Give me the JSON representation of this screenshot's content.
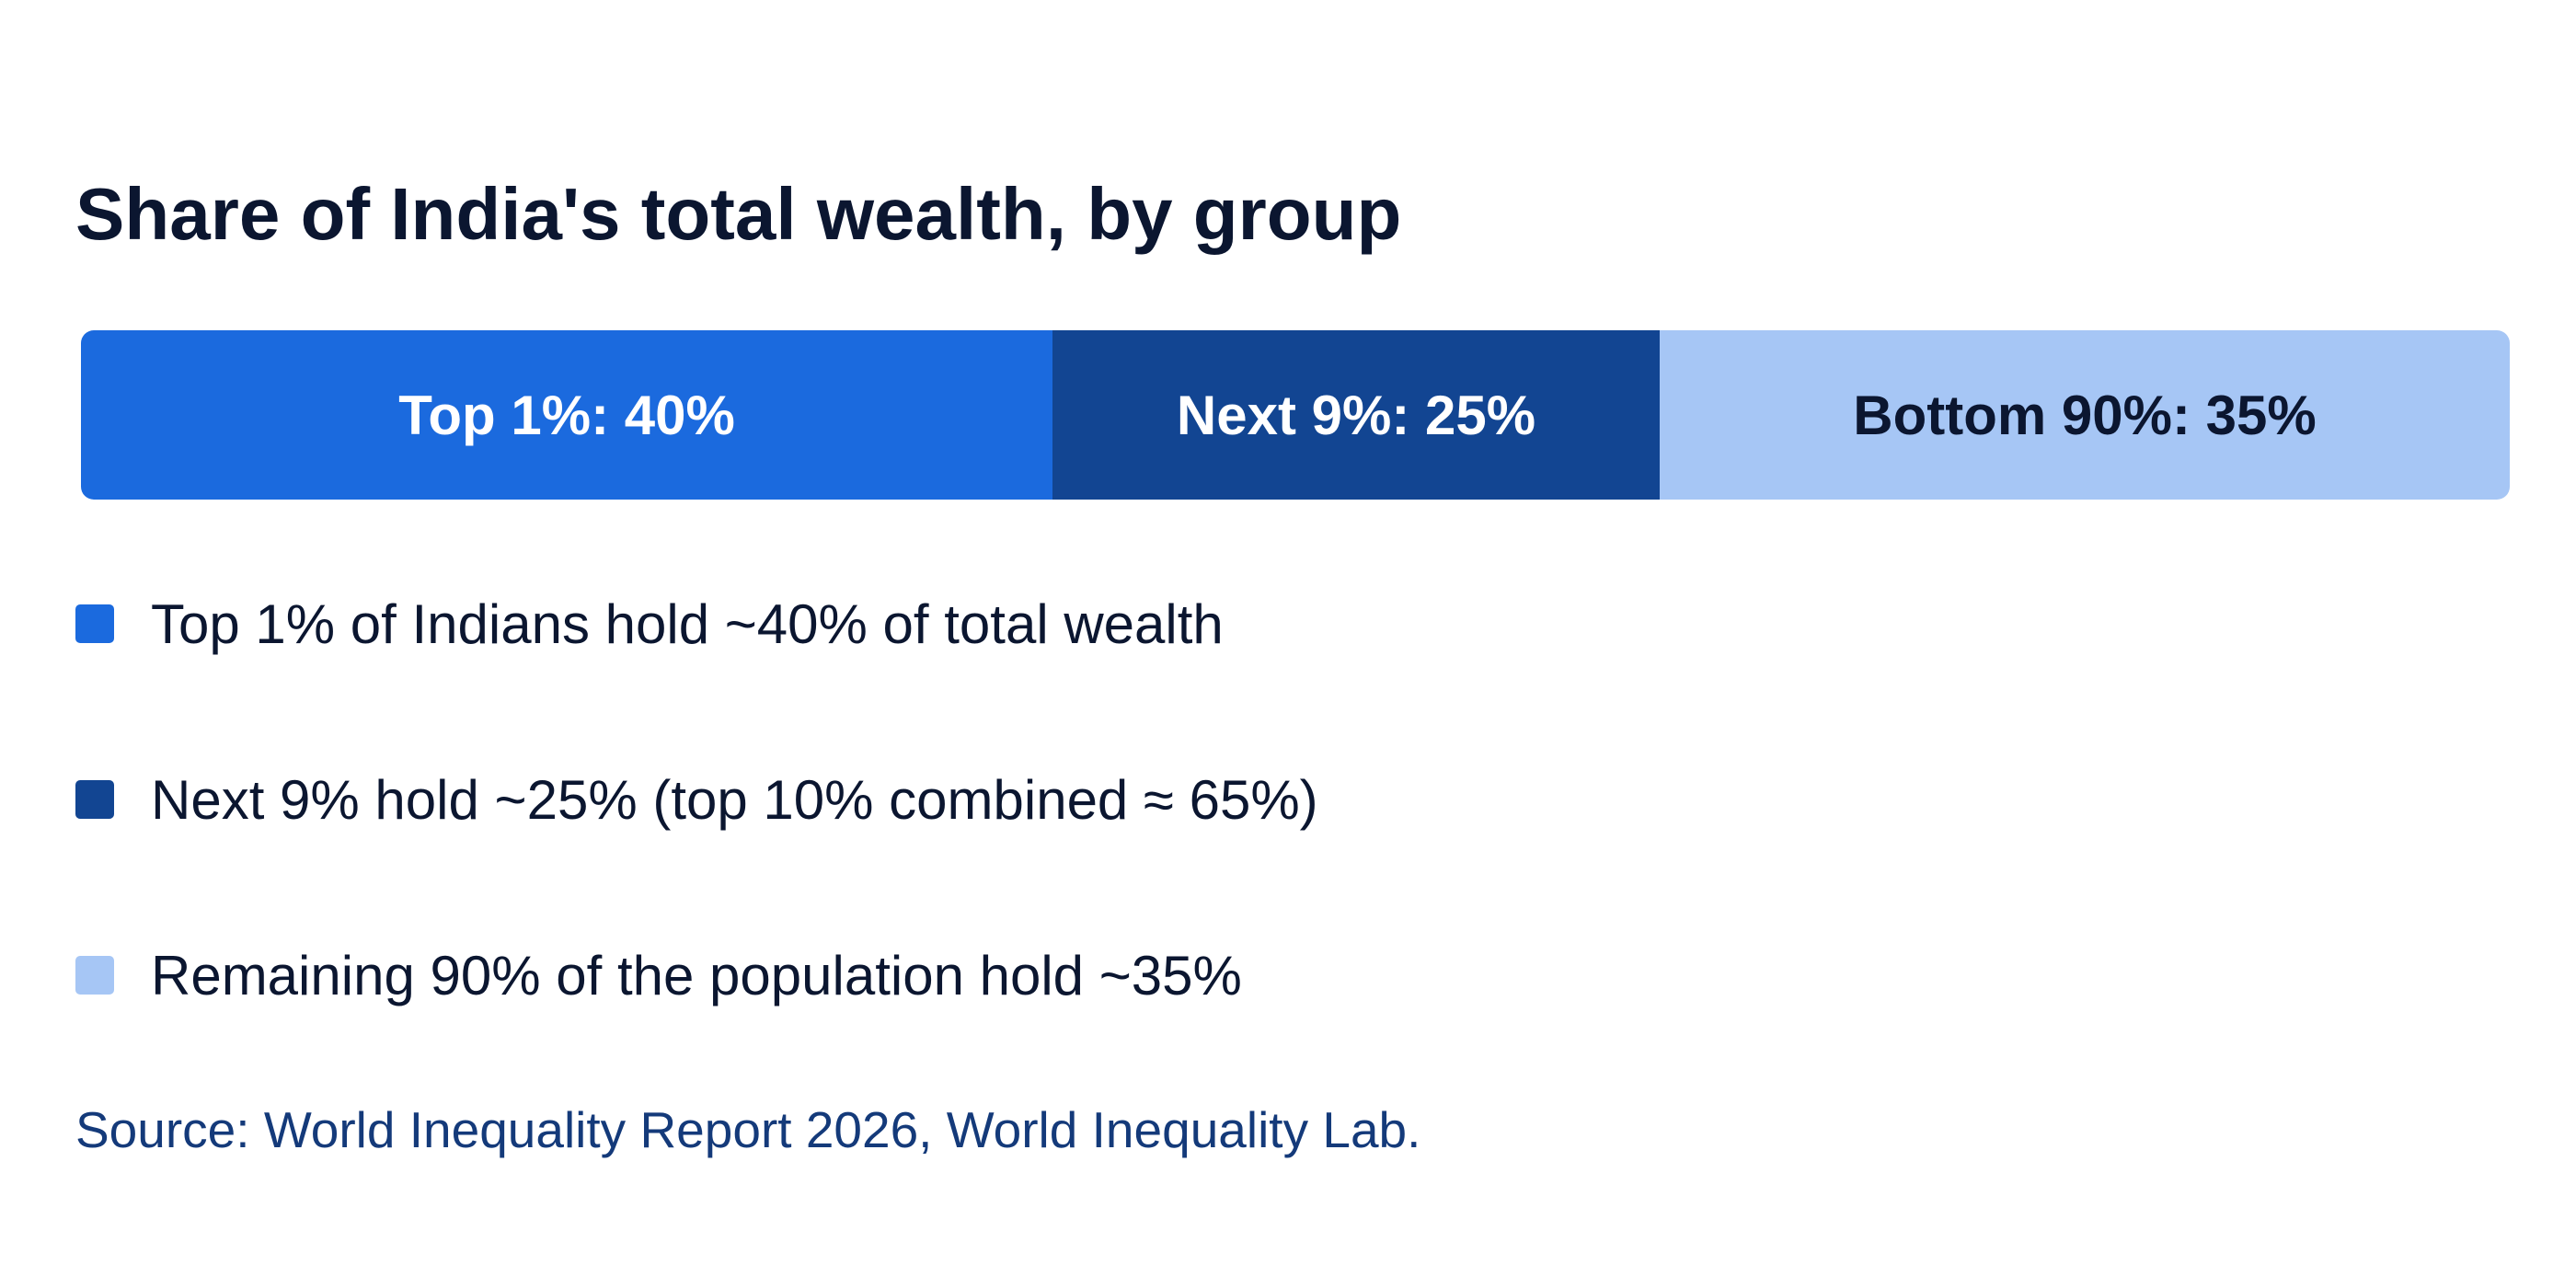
{
  "chart_data": {
    "type": "bar",
    "orientation": "horizontal-stacked-100",
    "title": "Share of India's total wealth, by group",
    "unit": "%",
    "xlim": [
      0,
      100
    ],
    "categories": [
      "Top 1%",
      "Next 9%",
      "Bottom 90%"
    ],
    "values": [
      40,
      25,
      35
    ],
    "segment_labels": [
      "Top 1%: 40%",
      "Next 9%: 25%",
      "Bottom 90%: 35%"
    ],
    "colors": [
      "#1b6ade",
      "#124592",
      "#a6c6f5"
    ],
    "label_colors": [
      "#ffffff",
      "#ffffff",
      "#0b1630"
    ],
    "legend": [
      "Top 1% of Indians hold ~40% of total wealth",
      "Next 9% hold ~25% (top 10% combined ≈ 65%)",
      "Remaining 90% of the population hold ~35%"
    ],
    "legend_placement": "below",
    "grid": false,
    "source": "Source: World Inequality Report 2026, World Inequality Lab."
  }
}
